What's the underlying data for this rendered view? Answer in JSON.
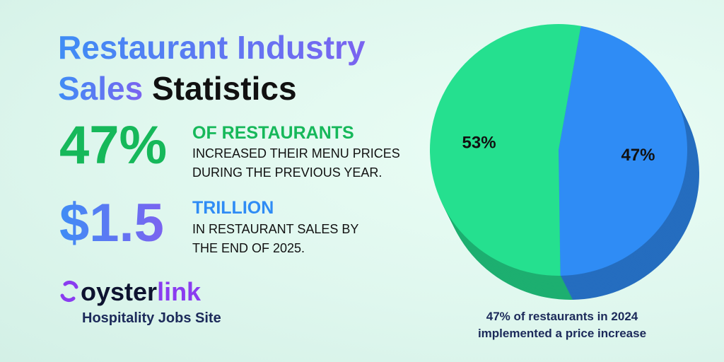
{
  "header": {
    "title_blue": "Restaurant Industry",
    "title_blue_2": "Sales",
    "title_black": "Statistics"
  },
  "stats": [
    {
      "figure": "47%",
      "headline": "OF RESTAURANTS",
      "lines": [
        "INCREASED THEIR MENU PRICES",
        "DURING THE PREVIOUS YEAR."
      ]
    },
    {
      "figure": "$1.5",
      "headline": "TRILLION",
      "lines": [
        "IN RESTAURANT SALES BY",
        "THE END OF 2025."
      ]
    }
  ],
  "brand": {
    "name_dark": "oyster",
    "name_color": "link",
    "tagline": "Hospitality Jobs Site"
  },
  "chart_data": {
    "type": "pie",
    "values": [
      47,
      53
    ],
    "value_labels": [
      "47%",
      "53%"
    ],
    "colors": [
      "#2f8cf5",
      "#25e08f"
    ],
    "annotation": [
      "47% of restaurants in 2024",
      "implemented a price increase"
    ]
  }
}
